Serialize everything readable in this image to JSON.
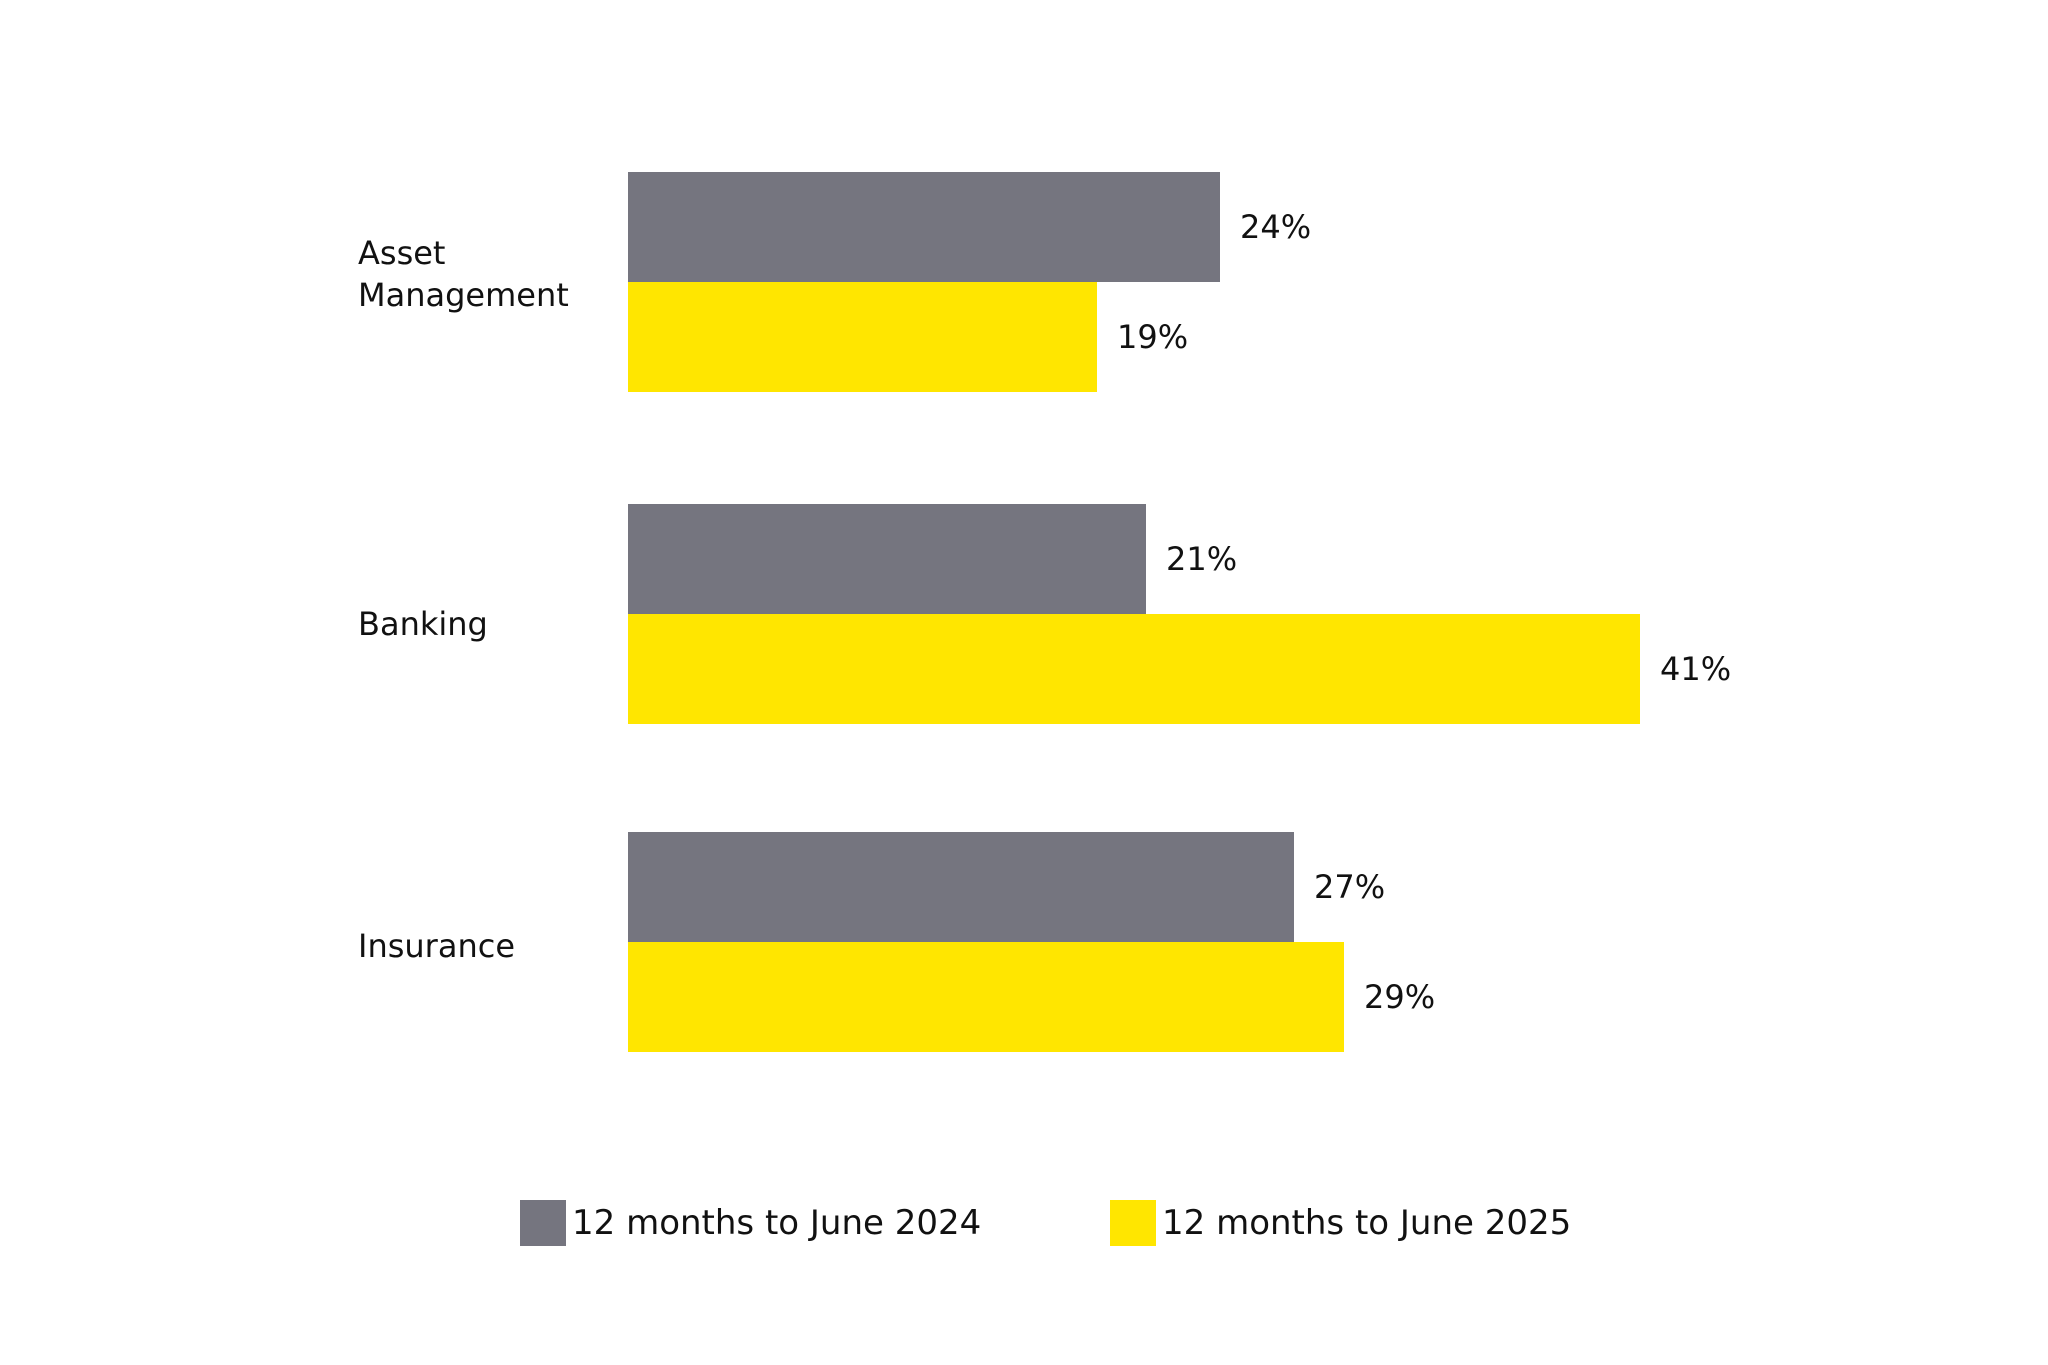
{
  "chart_data": {
    "type": "bar",
    "orientation": "horizontal",
    "categories": [
      "Asset\nManagement",
      "Banking",
      "Insurance"
    ],
    "series": [
      {
        "name": "12 months to June 2024",
        "color": "#75757f",
        "values": [
          24,
          21,
          27
        ],
        "labels": [
          "24%",
          "21%",
          "27%"
        ]
      },
      {
        "name": "12 months to June 2025",
        "color": "#ffe600",
        "values": [
          19,
          41,
          29
        ],
        "labels": [
          "19%",
          "41%",
          "29%"
        ]
      }
    ],
    "xlim": [
      0,
      41
    ],
    "grid": false,
    "legend_position": "bottom",
    "title": "",
    "xlabel": "",
    "ylabel": ""
  }
}
